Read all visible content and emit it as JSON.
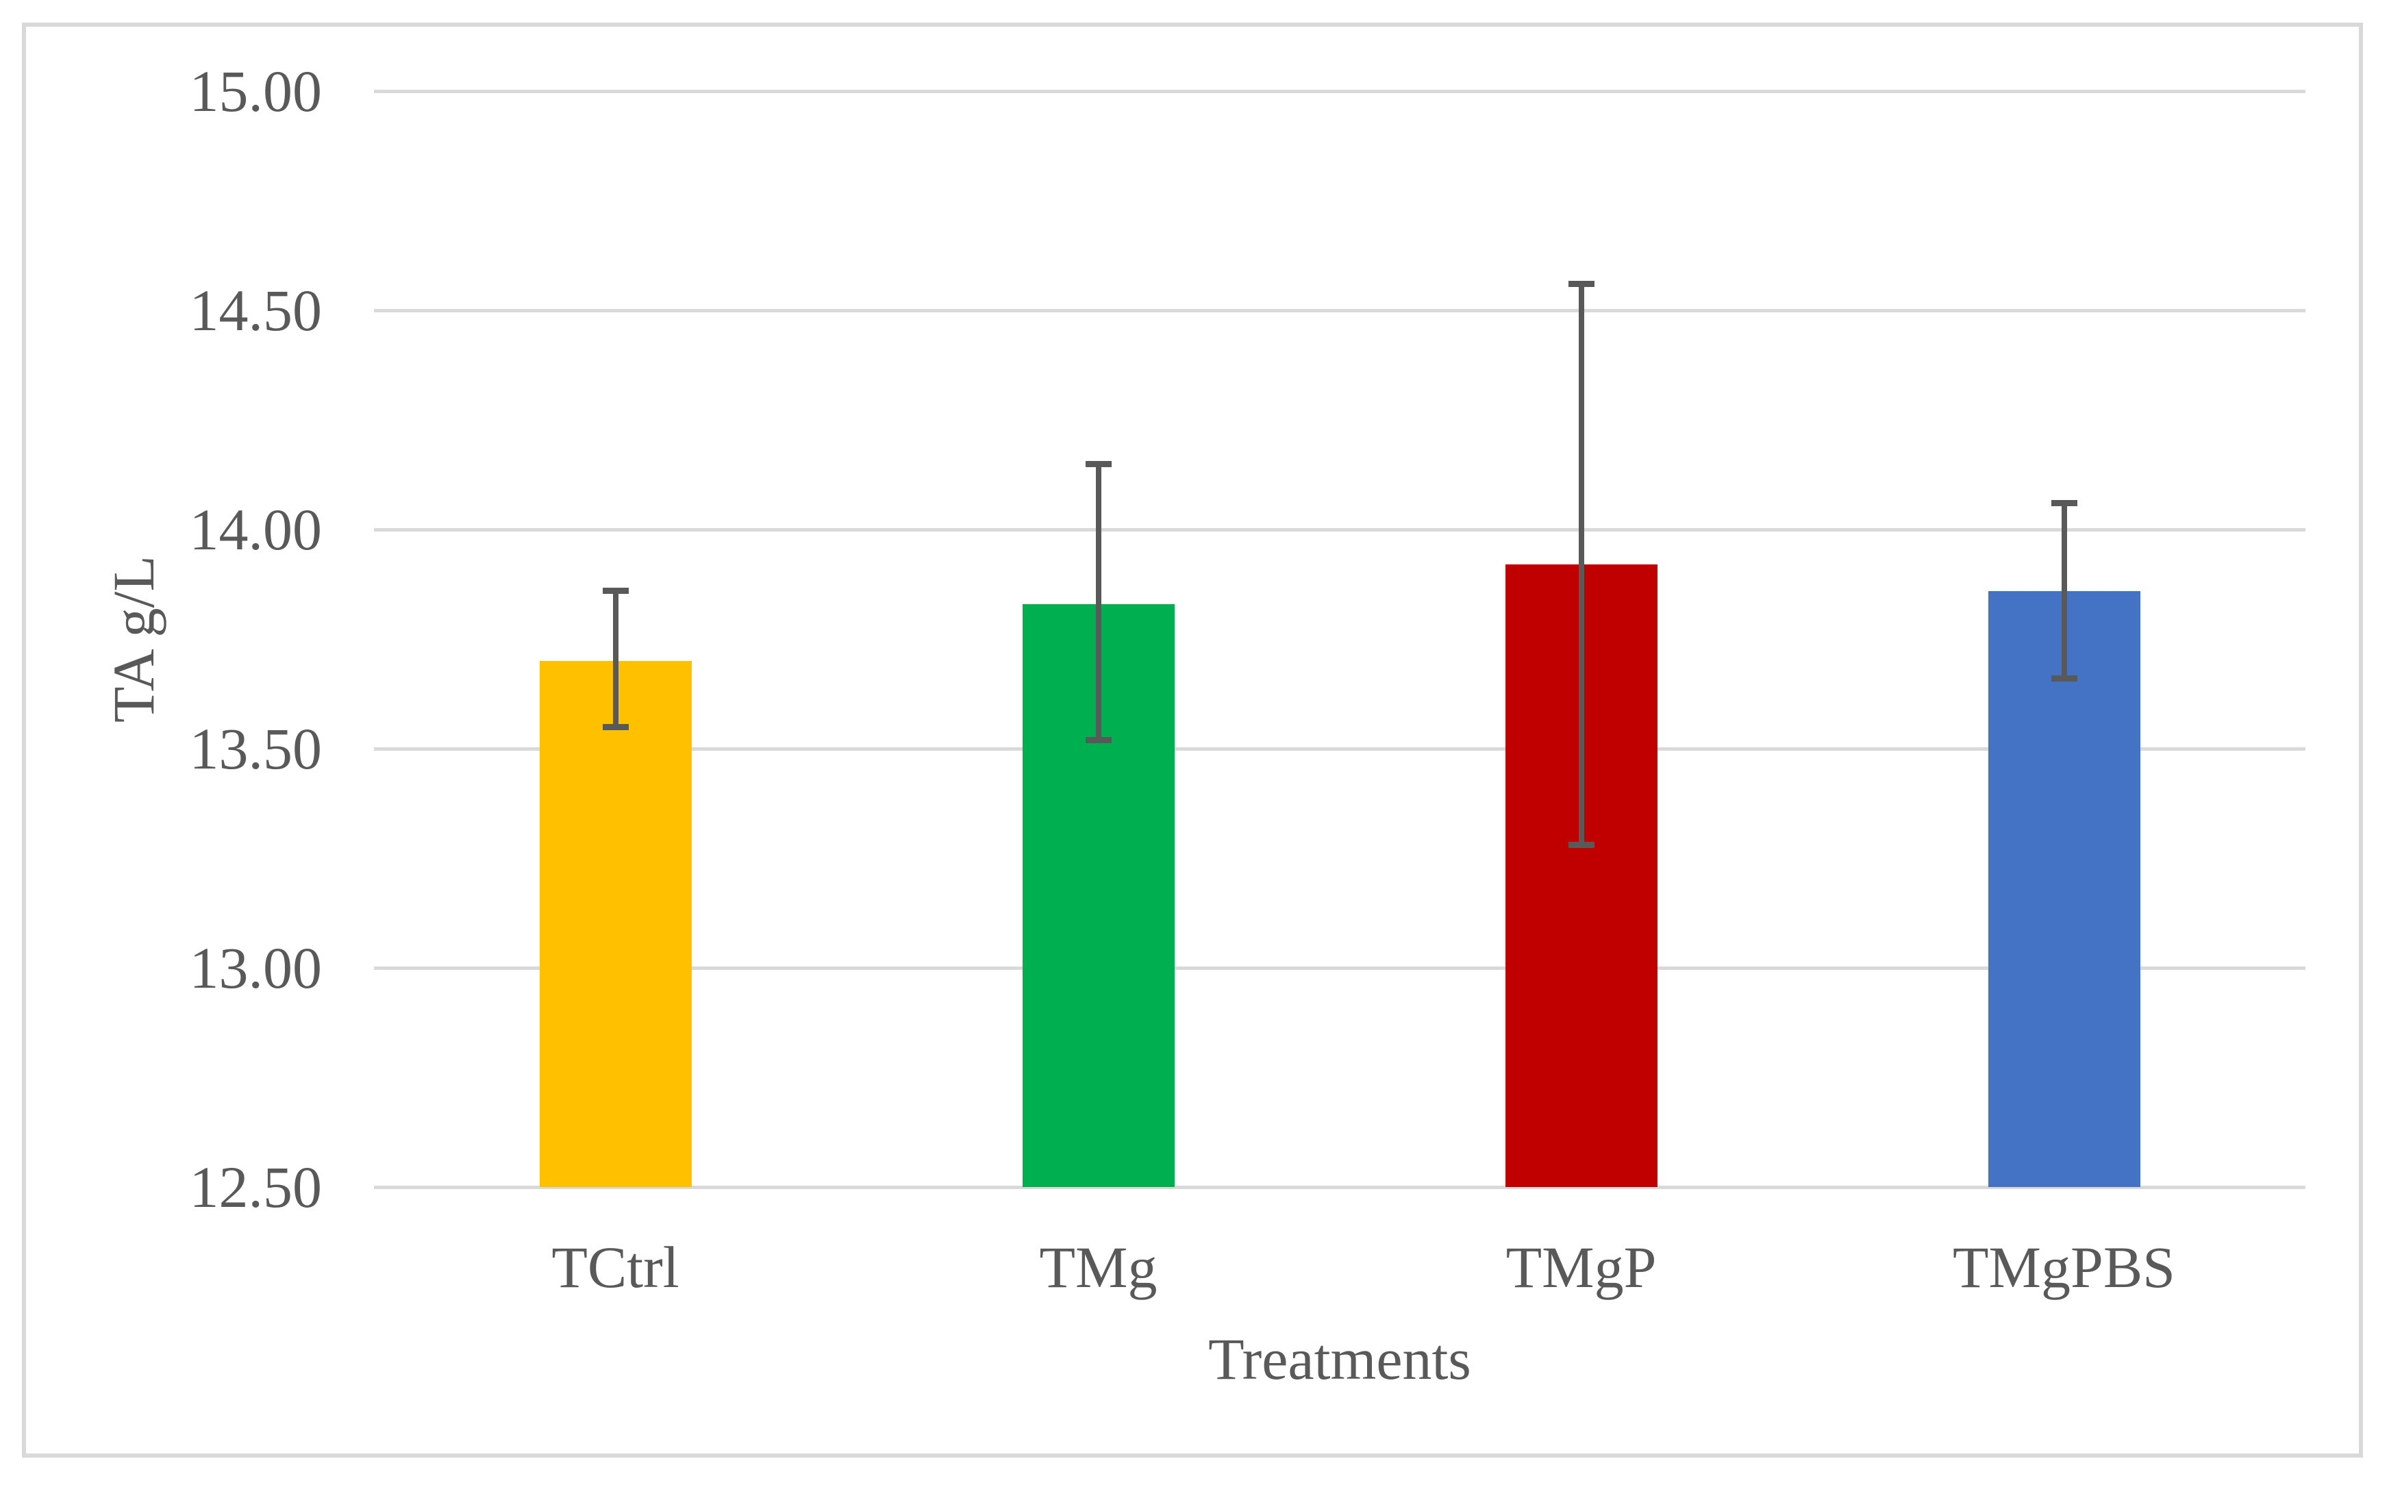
{
  "chart_data": {
    "type": "bar",
    "title": "",
    "categories": [
      "TCtrl",
      "TMg",
      "TMgP",
      "TMgPBS"
    ],
    "values": [
      13.7,
      13.83,
      13.92,
      13.86
    ],
    "error_low": [
      13.55,
      13.52,
      13.28,
      13.66
    ],
    "error_high": [
      13.86,
      14.15,
      14.56,
      14.06
    ],
    "bar_colors": [
      "#FFC000",
      "#00B050",
      "#C00000",
      "#4472C4"
    ],
    "xlabel": "Treatments",
    "ylabel": "TA g/L",
    "ylim": [
      12.5,
      15.0
    ],
    "yticks": [
      "15.00",
      "14.50",
      "14.00",
      "13.50",
      "13.00",
      "12.50"
    ],
    "grid": true,
    "legend": false,
    "gridline_color": "#D9D9D9",
    "border_color": "#D9D9D9",
    "error_bar_color": "#595959",
    "text_color": "#595959",
    "background": "#FFFFFF"
  }
}
